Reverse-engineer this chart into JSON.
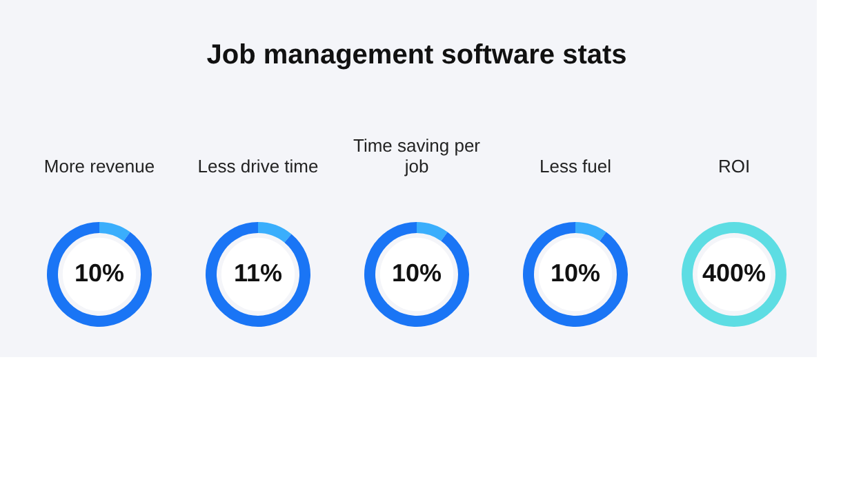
{
  "chart_data": [
    {
      "type": "other",
      "title": "Job management software stats"
    },
    {
      "type": "donut",
      "title": "More revenue",
      "categories": [
        null,
        null
      ],
      "values": [
        10,
        90
      ],
      "colors": [
        "#3aaefc",
        "#1a75f5"
      ],
      "annotations": [
        "10%"
      ]
    },
    {
      "type": "donut",
      "title": "Less drive time",
      "categories": [
        null,
        null
      ],
      "values": [
        11,
        89
      ],
      "colors": [
        "#3aaefc",
        "#1a75f5"
      ],
      "annotations": [
        "11%"
      ]
    },
    {
      "type": "donut",
      "title": "Time saving per job",
      "categories": [
        null,
        null
      ],
      "values": [
        10,
        90
      ],
      "colors": [
        "#3aaefc",
        "#1a75f5"
      ],
      "annotations": [
        "10%"
      ]
    },
    {
      "type": "donut",
      "title": "Less fuel",
      "categories": [
        null,
        null
      ],
      "values": [
        10,
        90
      ],
      "colors": [
        "#3aaefc",
        "#1a75f5"
      ],
      "annotations": [
        "10%"
      ]
    },
    {
      "type": "donut",
      "title": "ROI",
      "categories": [
        null
      ],
      "values": [
        100
      ],
      "colors": [
        "#5ddde3"
      ],
      "annotations": [
        "400%"
      ]
    }
  ]
}
